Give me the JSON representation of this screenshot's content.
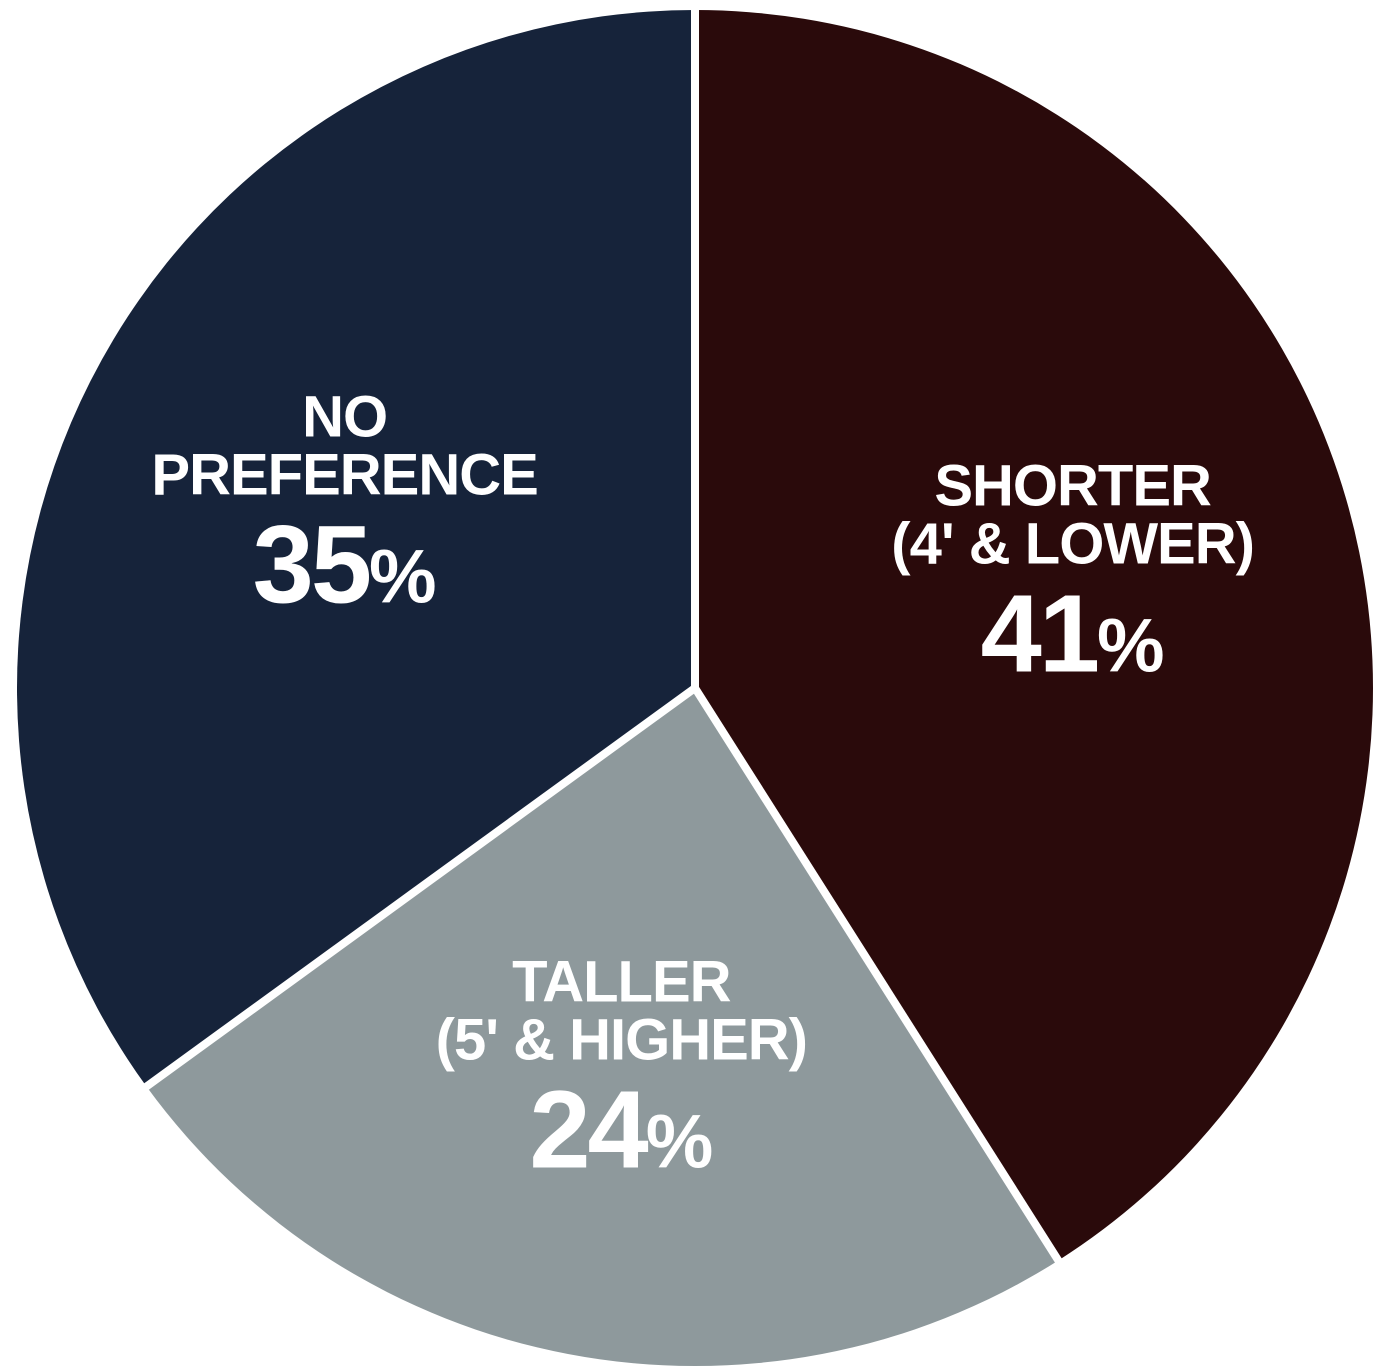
{
  "chart_data": {
    "type": "pie",
    "title": "",
    "slices": [
      {
        "label_lines": [
          "SHORTER",
          "(4' & LOWER)"
        ],
        "value": 41,
        "display": "41",
        "unit": "%",
        "color": "#2a0a0b"
      },
      {
        "label_lines": [
          "TALLER",
          "(5' & HIGHER)"
        ],
        "value": 24,
        "display": "24",
        "unit": "%",
        "color": "#8e999c"
      },
      {
        "label_lines": [
          "NO",
          "PREFERENCE"
        ],
        "value": 35,
        "display": "35",
        "unit": "%",
        "color": "#16233a"
      }
    ],
    "start_angle": "12 o'clock",
    "direction": "clockwise",
    "separator_color": "#ffffff",
    "legend": "none",
    "labels": "inside slices"
  }
}
